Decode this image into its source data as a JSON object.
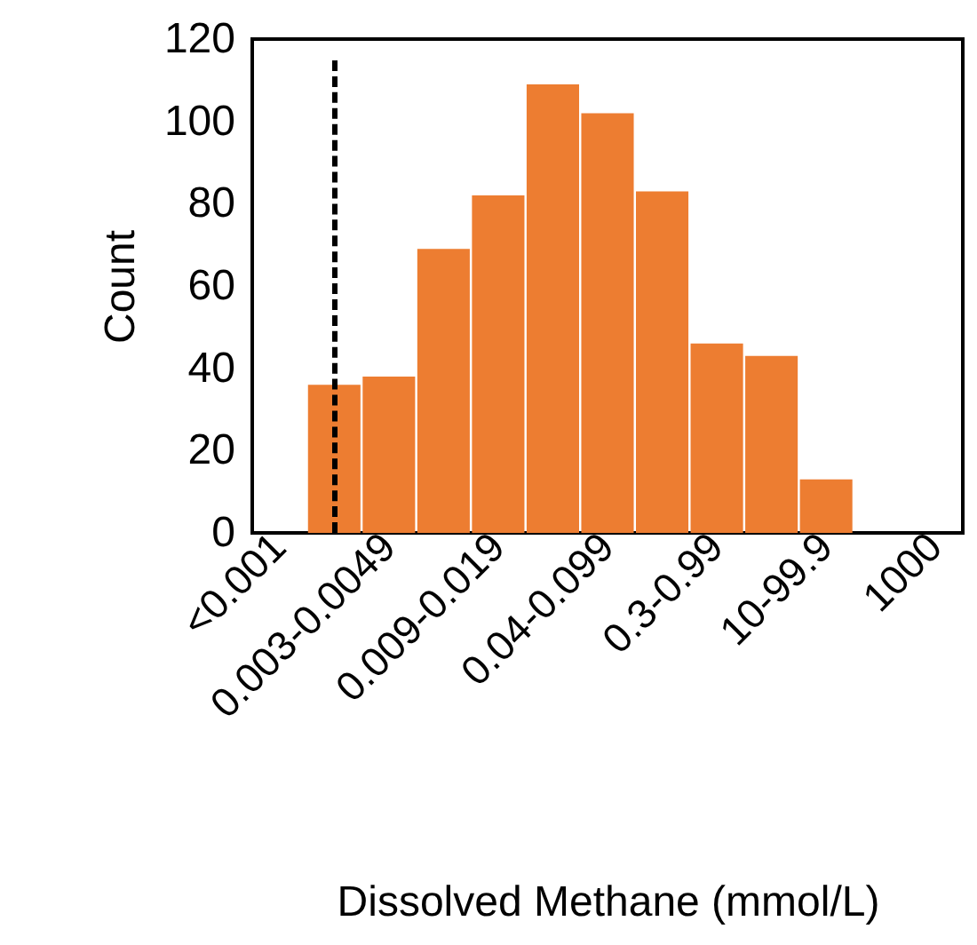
{
  "chart_data": {
    "type": "bar",
    "xlabel": "Dissolved Methane (mmol/L)",
    "ylabel": "Count",
    "categories": [
      "<0.001",
      null,
      "0.003-0.0049",
      null,
      "0.009-0.019",
      null,
      "0.04-0.099",
      null,
      "0.3-0.99",
      null,
      "10-99.9",
      null,
      "1000"
    ],
    "values": [
      0,
      36,
      38,
      69,
      82,
      109,
      102,
      83,
      46,
      43,
      13,
      0,
      0
    ],
    "color": "#ed7d31",
    "ylim": [
      0,
      120
    ],
    "yticks": [
      0,
      20,
      40,
      60,
      80,
      100,
      120
    ]
  }
}
